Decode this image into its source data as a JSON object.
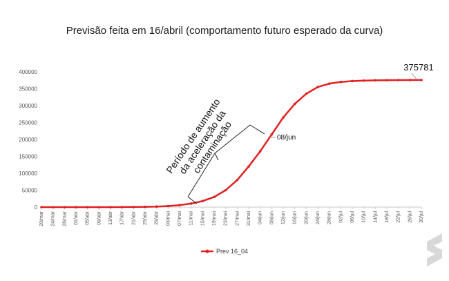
{
  "chart_data": {
    "type": "line",
    "title": "Previsão feita em 16/abril (comportamento futuro esperado da curva)",
    "xlabel": "",
    "ylabel": "",
    "ylim": [
      0,
      400000
    ],
    "yticks": [
      "0",
      "50000",
      "100000",
      "150000",
      "200000",
      "250000",
      "300000",
      "350000",
      "400000"
    ],
    "categories": [
      "20/mar",
      "24/mar",
      "28/mar",
      "01/abr",
      "05/abr",
      "09/abr",
      "13/abr",
      "17/abr",
      "21/abr",
      "25/abr",
      "29/abr",
      "03/mai",
      "07/mai",
      "11/mai",
      "15/mai",
      "19/mai",
      "23/mai",
      "27/mai",
      "31/mai",
      "04/jun",
      "08/jun",
      "12/jun",
      "16/jun",
      "20/jun",
      "24/jun",
      "28/jun",
      "02/jul",
      "06/jul",
      "10/jul",
      "14/jul",
      "18/jul",
      "22/jul",
      "26/jul",
      "30/jul"
    ],
    "series": [
      {
        "name": "Prev 16_04",
        "color": "#e02020",
        "values": [
          0,
          0,
          0,
          0,
          0,
          0,
          0,
          200,
          400,
          800,
          1600,
          3000,
          6000,
          10500,
          18000,
          30000,
          50000,
          80000,
          120000,
          165000,
          215000,
          265000,
          305000,
          335000,
          355000,
          365000,
          370000,
          372500,
          374000,
          374800,
          375200,
          375500,
          375700,
          375781
        ]
      }
    ],
    "grid": false,
    "legend": "bottom",
    "annotations": {
      "bracket_label": "Período de aumento da aceleração da contaminação",
      "bracket_lines": [
        "Período de aumento",
        "da aceleração da",
        "contaminação"
      ],
      "inflection_label": "08/jun",
      "peak_value_label": "375781"
    }
  }
}
